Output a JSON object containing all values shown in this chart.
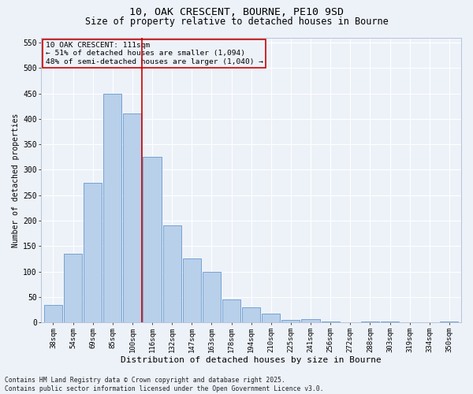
{
  "title1": "10, OAK CRESCENT, BOURNE, PE10 9SD",
  "title2": "Size of property relative to detached houses in Bourne",
  "xlabel": "Distribution of detached houses by size in Bourne",
  "ylabel": "Number of detached properties",
  "categories": [
    "38sqm",
    "54sqm",
    "69sqm",
    "85sqm",
    "100sqm",
    "116sqm",
    "132sqm",
    "147sqm",
    "163sqm",
    "178sqm",
    "194sqm",
    "210sqm",
    "225sqm",
    "241sqm",
    "256sqm",
    "272sqm",
    "288sqm",
    "303sqm",
    "319sqm",
    "334sqm",
    "350sqm"
  ],
  "values": [
    35,
    135,
    275,
    450,
    410,
    325,
    190,
    125,
    100,
    45,
    30,
    17,
    5,
    7,
    2,
    0,
    2,
    1,
    0,
    0,
    2
  ],
  "bar_color": "#b8d0ea",
  "bar_edge_color": "#6699cc",
  "vline_x": 4.5,
  "vline_color": "#cc0000",
  "annotation_line1": "10 OAK CRESCENT: 111sqm",
  "annotation_line2": "← 51% of detached houses are smaller (1,094)",
  "annotation_line3": "48% of semi-detached houses are larger (1,040) →",
  "annotation_box_color": "#cc0000",
  "ylim": [
    0,
    560
  ],
  "yticks": [
    0,
    50,
    100,
    150,
    200,
    250,
    300,
    350,
    400,
    450,
    500,
    550
  ],
  "bg_color": "#edf2f9",
  "grid_color": "#ffffff",
  "footer": "Contains HM Land Registry data © Crown copyright and database right 2025.\nContains public sector information licensed under the Open Government Licence v3.0.",
  "title_fontsize": 9.5,
  "subtitle_fontsize": 8.5,
  "tick_fontsize": 6.5,
  "label_fontsize": 8,
  "ylabel_fontsize": 7,
  "footer_fontsize": 5.8,
  "annot_fontsize": 6.8
}
